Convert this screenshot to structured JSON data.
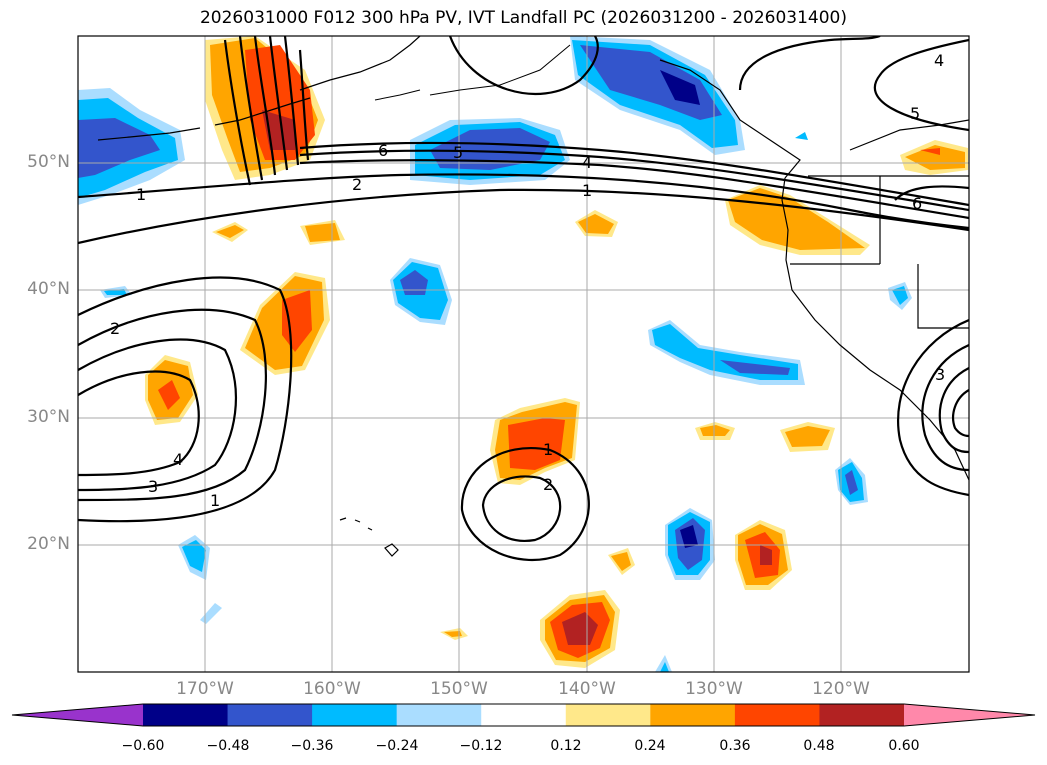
{
  "title": "2026031000 F012 300 hPa PV, IVT Landfall PC (2026031200 - 2026031400)",
  "map": {
    "lat_labels": [
      "50°N",
      "40°N",
      "30°N",
      "20°N"
    ],
    "lon_labels": [
      "170°W",
      "160°W",
      "150°W",
      "140°W",
      "130°W",
      "120°W"
    ],
    "contour_labels": [
      "6",
      "5",
      "4",
      "1",
      "2",
      "1",
      "5",
      "4",
      "6",
      "2",
      "4",
      "3",
      "1",
      "1",
      "2",
      "3"
    ]
  },
  "colorbar": {
    "ticks": [
      "−0.60",
      "−0.48",
      "−0.36",
      "−0.24",
      "−0.12",
      "0.12",
      "0.24",
      "0.36",
      "0.48",
      "0.60"
    ],
    "colors": [
      "#9933cc",
      "#000088",
      "#3355cc",
      "#00bbff",
      "#aaddff",
      "#ffffff",
      "#ffe88a",
      "#ffa500",
      "#ff4500",
      "#b22222",
      "#ff88aa"
    ]
  }
}
